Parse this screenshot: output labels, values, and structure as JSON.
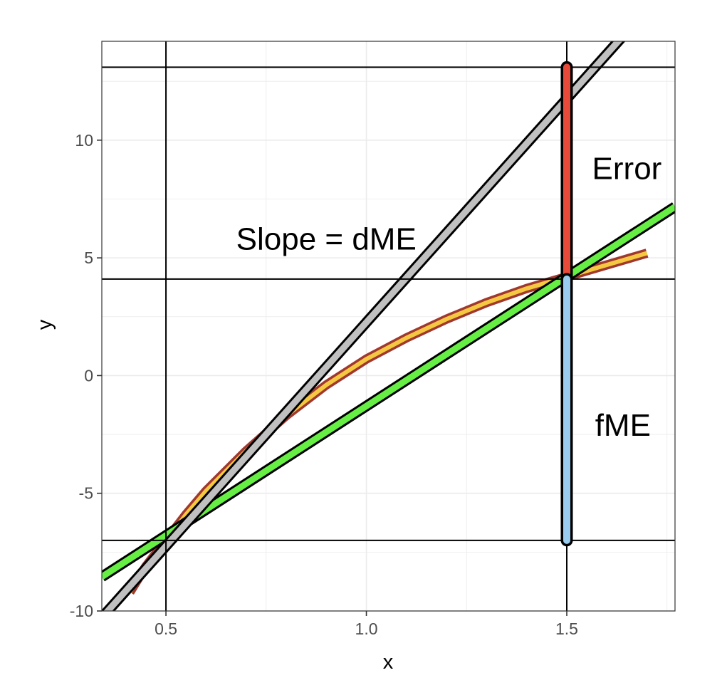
{
  "chart_data": {
    "type": "line",
    "title": "",
    "xlabel": "x",
    "ylabel": "y",
    "xlim": [
      0.34,
      1.77
    ],
    "ylim": [
      -10,
      14.2
    ],
    "x_ticks": [
      0.5,
      1.0,
      1.5
    ],
    "x_tick_labels": [
      "0.5",
      "1.0",
      "1.5"
    ],
    "y_ticks": [
      -10,
      -5,
      0,
      5,
      10
    ],
    "y_tick_labels": [
      "-10",
      "-5",
      "0",
      "5",
      "10"
    ],
    "grid": true,
    "legend": "none",
    "reference_lines": {
      "vertical_x": [
        0.5,
        1.5
      ],
      "horizontal_y": [
        -7.0,
        4.1,
        13.1
      ]
    },
    "series": [
      {
        "curve": "f(x)",
        "color_outer": "#a0382e",
        "color_inner": "#f5c842",
        "x": [
          0.41,
          0.45,
          0.5,
          0.55,
          0.6,
          0.7,
          0.8,
          0.9,
          1.0,
          1.1,
          1.2,
          1.3,
          1.4,
          1.5,
          1.6,
          1.7
        ],
        "y": [
          -9.2,
          -8.1,
          -7.0,
          -5.9,
          -4.9,
          -3.2,
          -1.7,
          -0.4,
          0.7,
          1.6,
          2.4,
          3.1,
          3.7,
          4.2,
          4.7,
          5.2
        ]
      },
      {
        "line": "tangent",
        "color": "#66ee44",
        "x": [
          0.34,
          1.77
        ],
        "y": [
          -8.55,
          7.17
        ]
      },
      {
        "line": "secant",
        "color": "#c0c0c0",
        "x": [
          0.34,
          1.77
        ],
        "y": [
          -10.28,
          16.89
        ]
      }
    ],
    "segments": [
      {
        "name": "Error",
        "color": "#e84a3a",
        "x": 1.5,
        "y_from": 4.1,
        "y_to": 13.1
      },
      {
        "name": "fME",
        "color": "#99ccee",
        "x": 1.5,
        "y_from": -7.0,
        "y_to": 4.1
      }
    ],
    "annotations": [
      {
        "text": "Slope = dME",
        "x": 0.9,
        "y": 5.8
      },
      {
        "text": "Error",
        "x": 1.65,
        "y": 8.8
      },
      {
        "text": "fME",
        "x": 1.64,
        "y": -2.1
      }
    ]
  }
}
